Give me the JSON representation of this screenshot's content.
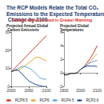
{
  "title": "The RCP Models Relate the Total CO₂ Emissions to the Expected Temperature Change by 2100",
  "subtitle": "Greater emission lead to Greater Warming",
  "chart_data": [
    {
      "type": "line",
      "title": "Projected Annual Global Carbon Emissions",
      "x": [
        2000,
        2010,
        2020,
        2030,
        2040,
        2050,
        2060,
        2070,
        2080,
        2090,
        2100
      ],
      "series": [
        {
          "name": "RCP8.5",
          "color": "#d7301f",
          "values": [
            8,
            10,
            12,
            14,
            16,
            18,
            20,
            22,
            24,
            26,
            28
          ]
        },
        {
          "name": "RCP6",
          "color": "#f0a030",
          "values": [
            8,
            8.5,
            9,
            10,
            11.5,
            13,
            14.5,
            16,
            16,
            15,
            14
          ]
        },
        {
          "name": "RCP4.5",
          "color": "#5aa0d8",
          "values": [
            8,
            9,
            10,
            11,
            11,
            10,
            9,
            7,
            5,
            4,
            4
          ]
        },
        {
          "name": "RCP2.6",
          "color": "#1f4e9a",
          "values": [
            8,
            9,
            9,
            7,
            5,
            3,
            2,
            1,
            0.5,
            0,
            0
          ]
        }
      ],
      "xlim": [
        2000,
        2100
      ],
      "xticks": [
        2000,
        2050,
        2100
      ],
      "ylim": [
        0,
        30
      ],
      "yticks": [
        0,
        10,
        20,
        30
      ],
      "grid": false,
      "legend": "bottom"
    },
    {
      "type": "line",
      "title": "Projected Global Temperatures",
      "x": [
        1900,
        1920,
        1940,
        1960,
        1980,
        2000,
        2020,
        2040,
        2060,
        2080,
        2100
      ],
      "series": [
        {
          "color": "#000000",
          "values": [
            -0.3,
            -0.3,
            -0.1,
            -0.1,
            0,
            0.5,
            null,
            null,
            null,
            null,
            null
          ]
        },
        {
          "name": "RCP8.5",
          "color": "#d7301f",
          "values": [
            null,
            null,
            null,
            null,
            null,
            0.5,
            0.9,
            1.5,
            2.2,
            3.0,
            4.0
          ]
        },
        {
          "name": "RCP6",
          "color": "#f0a030",
          "values": [
            null,
            null,
            null,
            null,
            null,
            0.5,
            0.8,
            1.2,
            1.7,
            2.3,
            2.8
          ]
        },
        {
          "name": "RCP4.5",
          "color": "#5aa0d8",
          "values": [
            null,
            null,
            null,
            null,
            null,
            0.5,
            0.8,
            1.2,
            1.5,
            1.7,
            1.8
          ]
        },
        {
          "name": "RCP2.6",
          "color": "#1f4e9a",
          "values": [
            null,
            null,
            null,
            null,
            null,
            0.5,
            0.8,
            1.0,
            1.0,
            1.0,
            0.9
          ]
        }
      ],
      "xlim": [
        1900,
        2100
      ],
      "xticks": [
        1900,
        2000,
        2100
      ],
      "ylim": [
        -2,
        6
      ],
      "yticks": [
        -2,
        0,
        2,
        4,
        6
      ],
      "grid": false,
      "legend": "bottom"
    }
  ]
}
